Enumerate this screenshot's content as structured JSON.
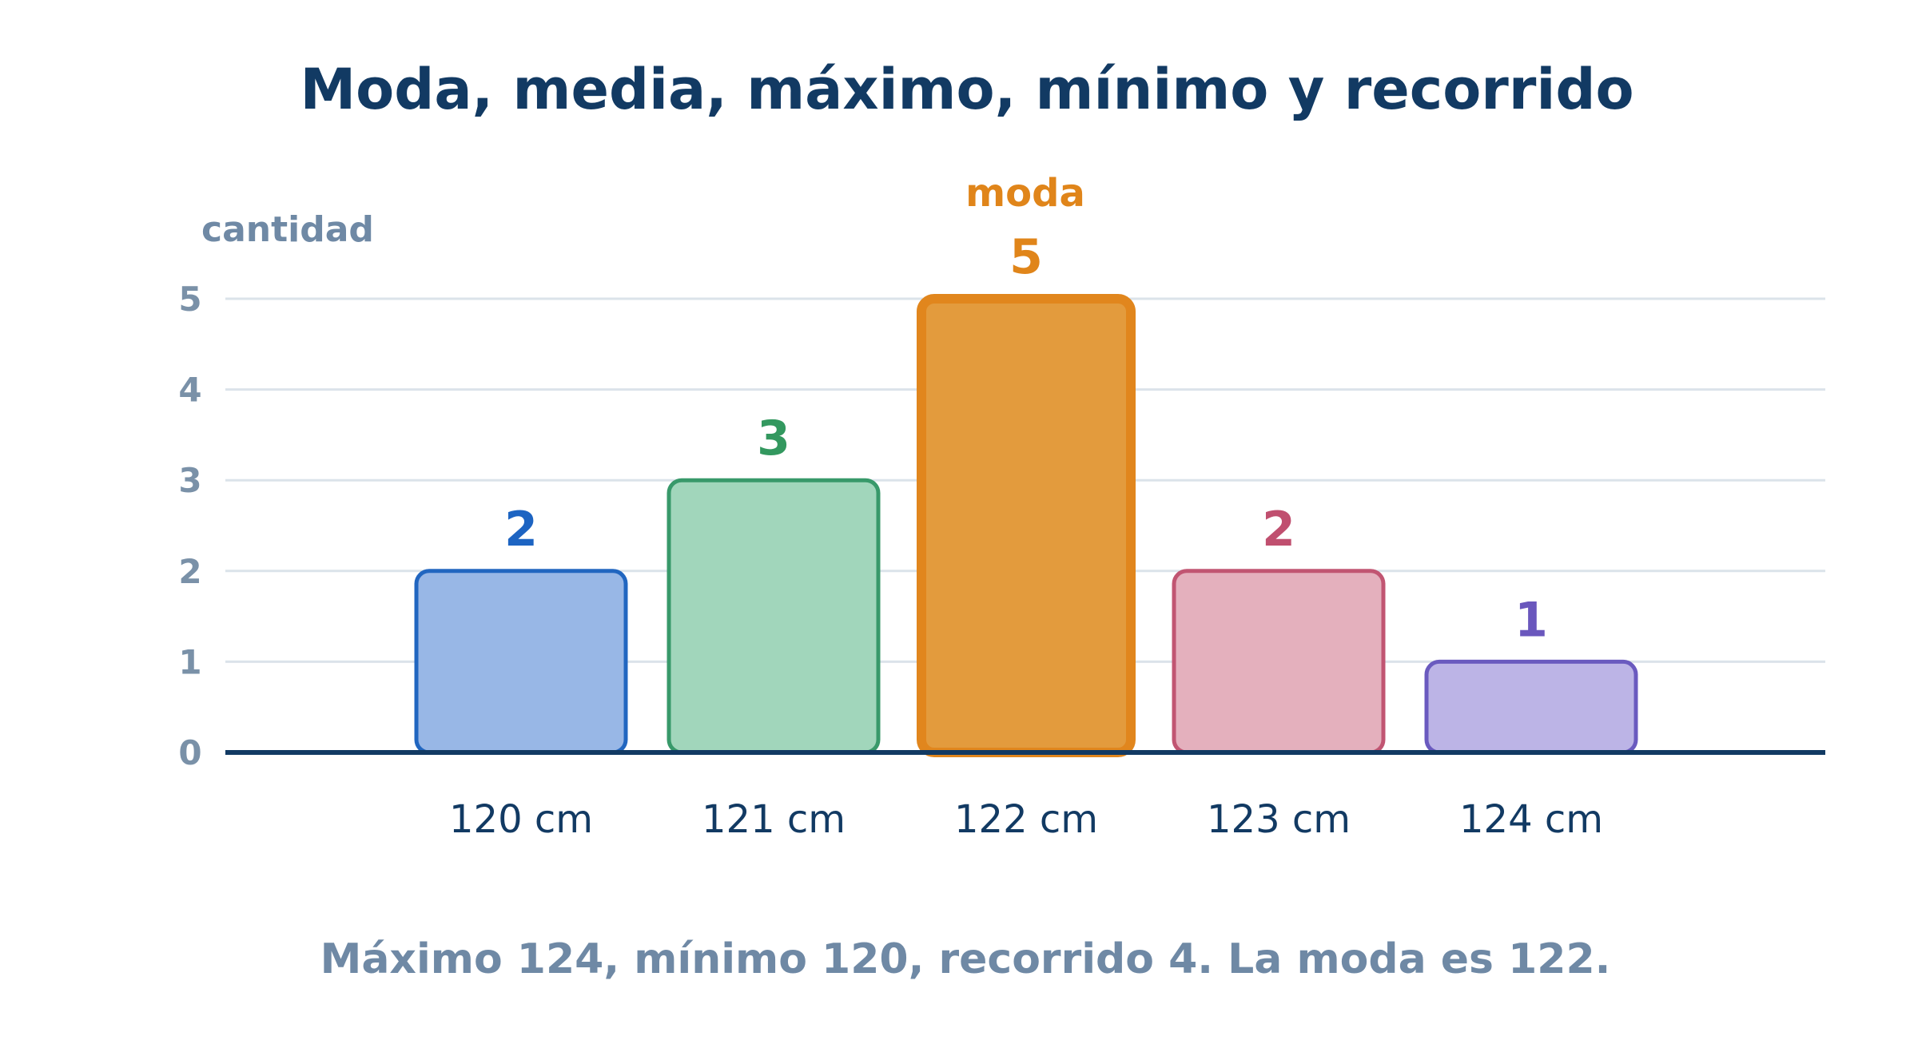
{
  "chart_data": {
    "type": "bar",
    "title": "Moda, media, máximo, mínimo y recorrido",
    "ylabel": "cantidad",
    "xlabel": "",
    "categories": [
      "120 cm",
      "121 cm",
      "122 cm",
      "123 cm",
      "124 cm"
    ],
    "values": [
      2,
      3,
      5,
      2,
      1
    ],
    "value_labels": [
      "2",
      "3",
      "5",
      "2",
      "1"
    ],
    "yticks": [
      "0",
      "1",
      "2",
      "3",
      "4",
      "5"
    ],
    "ylim": [
      0,
      5
    ],
    "grid": true,
    "legend": "none",
    "annotation": {
      "text": "moda",
      "category": "122 cm"
    },
    "caption": "Máximo 124, mínimo 120, recorrido 4. La moda es 122.",
    "colors": {
      "bars_fill": [
        "#98b7e6",
        "#a1d6bb",
        "#e39b3d",
        "#e4b0bd",
        "#bcb4e6"
      ],
      "bars_stroke": [
        "#2166c0",
        "#38996a",
        "#e1861d",
        "#c15572",
        "#6a5abf"
      ],
      "value_label_colors": [
        "#1d64c2",
        "#33985f",
        "#e0851a",
        "#c04f6f",
        "#6a57bd"
      ],
      "mode_label": "#e0851a",
      "title": "#123a63",
      "axis": "#123a63",
      "grid": "#dbe3ea",
      "muted_text": "#6f89a5"
    }
  }
}
